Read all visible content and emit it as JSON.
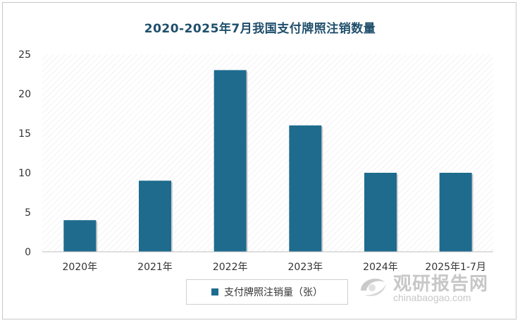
{
  "chart_data": {
    "type": "bar",
    "title": "2020-2025年7月我国支付牌照注销数量",
    "categories": [
      "2020年",
      "2021年",
      "2022年",
      "2023年",
      "2024年",
      "2025年1-7月"
    ],
    "series": [
      {
        "name": "支付牌照注销量（张）",
        "values": [
          4,
          9,
          23,
          16,
          10,
          10
        ]
      }
    ],
    "ylim": [
      0,
      25
    ],
    "yticks": [
      0,
      5,
      10,
      15,
      20,
      25
    ],
    "grid": false,
    "legend_position": "bottom",
    "bar_color": "#1e6b8e"
  },
  "watermark": {
    "name": "观研报告网",
    "url": "chinabaogao.com"
  }
}
